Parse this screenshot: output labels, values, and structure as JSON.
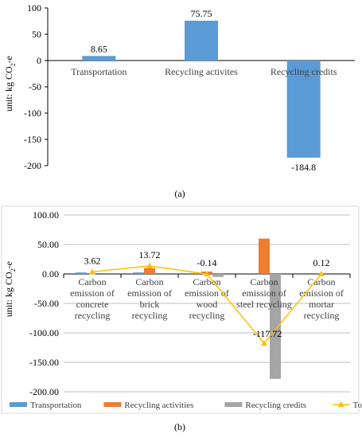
{
  "chart_data": [
    {
      "type": "bar",
      "caption": "(a)",
      "ylabel": "unit: kg CO",
      "ylabel_sub": "2",
      "ylabel_suffix": "-e",
      "ylim": [
        -200,
        100
      ],
      "yticks": [
        -200,
        -150,
        -100,
        -50,
        0,
        50,
        100
      ],
      "ytick_labels": [
        "-200",
        "-150",
        "-100",
        "-50",
        "0",
        "50",
        "100"
      ],
      "categories": [
        "Transportation",
        "Recycling activites",
        "Recycling credits"
      ],
      "values": [
        8.65,
        75.75,
        -184.8
      ],
      "value_labels": [
        "8.65",
        "75.75",
        "-184.8"
      ],
      "colors": {
        "bar": "#5b9bd5"
      },
      "grid": false
    },
    {
      "type": "bar",
      "caption": "(b)",
      "ylabel": "unit: kg CO",
      "ylabel_sub": "2",
      "ylabel_suffix": "-e",
      "ylim": [
        -200,
        100
      ],
      "yticks": [
        -200,
        -150,
        -100,
        -50,
        0,
        50,
        100
      ],
      "ytick_labels": [
        "-200.00",
        "-150.00",
        "-100.00",
        "-50.00",
        "0.00",
        "50.00",
        "100.00"
      ],
      "categories": [
        [
          "Carbon",
          "emission of",
          "concrete",
          "recycling"
        ],
        [
          "Carbon",
          "emission of",
          "brick",
          "recycling"
        ],
        [
          "Carbon",
          "emission of",
          "wood",
          "recycling"
        ],
        [
          "Carbon",
          "emission of",
          "steel recycling"
        ],
        [
          "Carbon",
          "emission of",
          "mortar",
          "recycling"
        ]
      ],
      "series": [
        {
          "name": "Transportation",
          "values": [
            2.5,
            2.5,
            1.5,
            0,
            0
          ],
          "color": "#5b9bd5"
        },
        {
          "name": "Recycling activities",
          "values": [
            0,
            10,
            4,
            60,
            0
          ],
          "color": "#ed7d31"
        },
        {
          "name": "Recycling credits",
          "values": [
            0,
            0,
            -5,
            -178,
            0
          ],
          "color": "#a5a5a5"
        },
        {
          "name": "Total",
          "type": "line",
          "values": [
            3.62,
            13.72,
            -0.14,
            -117.72,
            0.12
          ],
          "color": "#ffc000"
        }
      ],
      "total_labels": [
        "3.62",
        "13.72",
        "-0.14",
        "-117.72",
        "0.12"
      ],
      "grid": true,
      "legend": "bottom"
    }
  ]
}
